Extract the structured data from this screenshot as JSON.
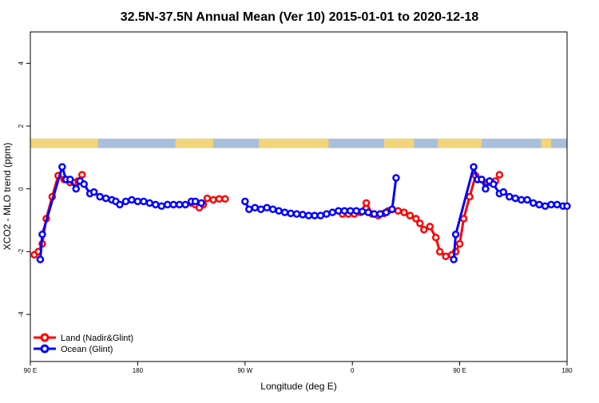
{
  "chart_data": {
    "type": "line",
    "title": "32.5N-37.5N Annual Mean (Ver 10)   2015-01-01 to 2020-12-18",
    "xlabel": "Longitude (deg E)",
    "ylabel": "XCO2 - MLO trend (ppm)",
    "xlim": [
      -90,
      180
    ],
    "ylim": [
      -5.5,
      5
    ],
    "x_ticks": [
      {
        "value": -90,
        "label": "90 E"
      },
      {
        "value": -36,
        "label": "180"
      },
      {
        "value": 18,
        "label": "90 W"
      },
      {
        "value": 72,
        "label": "0"
      },
      {
        "value": 126,
        "label": "90 E"
      },
      {
        "value": 180,
        "label": "180"
      }
    ],
    "y_ticks": [
      {
        "value": -4,
        "label": "-4"
      },
      {
        "value": -2,
        "label": "-2"
      },
      {
        "value": 0,
        "label": "0"
      },
      {
        "value": 2,
        "label": "2"
      },
      {
        "value": 4,
        "label": "4"
      }
    ],
    "land_mask_band": {
      "y_range": [
        1.3,
        1.6
      ],
      "ocean_color": "#a9bfdc",
      "land_color": "#f2d57a",
      "land_segments": [
        [
          -90,
          -56
        ],
        [
          -17,
          2
        ],
        [
          25,
          60
        ],
        [
          88,
          103
        ],
        [
          115,
          137
        ],
        [
          167,
          172
        ]
      ]
    },
    "legend_position": "bottom-left",
    "series": [
      {
        "name": "Land (Nadir&Glint)",
        "color": "#ff0000",
        "points": [
          [
            -88,
            -2.1
          ],
          [
            -86,
            -2.0
          ],
          [
            -84,
            -1.75
          ],
          [
            -82,
            -0.95
          ],
          [
            -79,
            -0.25
          ],
          [
            -76,
            0.42
          ],
          [
            -73,
            0.3
          ],
          [
            -70,
            0.2
          ],
          [
            -68,
            0.2
          ],
          [
            -66,
            0.25
          ],
          [
            -64,
            0.45
          ],
          [
            -9,
            -0.45
          ],
          [
            -7,
            -0.5
          ],
          [
            -5,
            -0.6
          ],
          [
            -3,
            -0.5
          ],
          [
            -1,
            -0.3
          ],
          [
            2,
            -0.35
          ],
          [
            5,
            -0.32
          ],
          [
            8,
            -0.32
          ],
          [
            67,
            -0.8
          ],
          [
            70,
            -0.8
          ],
          [
            73,
            -0.8
          ],
          [
            76,
            -0.75
          ],
          [
            79,
            -0.45
          ],
          [
            82,
            -0.8
          ],
          [
            85,
            -0.85
          ],
          [
            88,
            -0.78
          ],
          [
            90,
            -0.7
          ],
          [
            92,
            -0.65
          ],
          [
            95,
            -0.7
          ],
          [
            98,
            -0.75
          ],
          [
            101,
            -0.85
          ],
          [
            104,
            -0.95
          ],
          [
            106,
            -1.1
          ],
          [
            108,
            -1.3
          ],
          [
            111,
            -1.2
          ],
          [
            114,
            -1.55
          ],
          [
            116,
            -2.0
          ],
          [
            119,
            -2.15
          ],
          [
            122,
            -2.1
          ],
          [
            124,
            -2.0
          ],
          [
            126,
            -1.75
          ],
          [
            128,
            -0.95
          ],
          [
            131,
            -0.25
          ],
          [
            134,
            0.42
          ],
          [
            137,
            0.3
          ],
          [
            140,
            0.2
          ],
          [
            142,
            0.2
          ],
          [
            144,
            0.25
          ],
          [
            146,
            0.45
          ]
        ]
      },
      {
        "name": "Ocean (Glint)",
        "color": "#0000ff",
        "points": [
          [
            -85,
            -2.25
          ],
          [
            -84,
            -1.45
          ],
          [
            -74,
            0.7
          ],
          [
            -72,
            0.3
          ],
          [
            -70,
            0.3
          ],
          [
            -67,
            0.0
          ],
          [
            -65,
            0.25
          ],
          [
            -63,
            0.15
          ],
          [
            -60,
            -0.15
          ],
          [
            -58,
            -0.1
          ],
          [
            -55,
            -0.25
          ],
          [
            -52,
            -0.3
          ],
          [
            -49,
            -0.35
          ],
          [
            -47,
            -0.4
          ],
          [
            -45,
            -0.5
          ],
          [
            -42,
            -0.4
          ],
          [
            -39,
            -0.35
          ],
          [
            -36,
            -0.4
          ],
          [
            -33,
            -0.4
          ],
          [
            -30,
            -0.45
          ],
          [
            -27,
            -0.5
          ],
          [
            -24,
            -0.55
          ],
          [
            -21,
            -0.5
          ],
          [
            -18,
            -0.5
          ],
          [
            -15,
            -0.5
          ],
          [
            -12,
            -0.5
          ],
          [
            -9,
            -0.4
          ],
          [
            -7,
            -0.4
          ],
          [
            -4,
            -0.45
          ],
          [
            18,
            -0.4
          ],
          [
            20,
            -0.65
          ],
          [
            23,
            -0.6
          ],
          [
            26,
            -0.65
          ],
          [
            29,
            -0.6
          ],
          [
            32,
            -0.65
          ],
          [
            35,
            -0.7
          ],
          [
            38,
            -0.75
          ],
          [
            41,
            -0.78
          ],
          [
            44,
            -0.8
          ],
          [
            47,
            -0.82
          ],
          [
            50,
            -0.85
          ],
          [
            53,
            -0.85
          ],
          [
            56,
            -0.85
          ],
          [
            59,
            -0.8
          ],
          [
            62,
            -0.75
          ],
          [
            65,
            -0.7
          ],
          [
            68,
            -0.7
          ],
          [
            71,
            -0.7
          ],
          [
            74,
            -0.7
          ],
          [
            77,
            -0.72
          ],
          [
            80,
            -0.75
          ],
          [
            83,
            -0.8
          ],
          [
            86,
            -0.8
          ],
          [
            89,
            -0.75
          ],
          [
            92,
            -0.65
          ],
          [
            94,
            0.35
          ],
          [
            123,
            -2.25
          ],
          [
            124,
            -1.45
          ],
          [
            133,
            0.7
          ],
          [
            135,
            0.3
          ],
          [
            137,
            0.3
          ],
          [
            139,
            0.0
          ],
          [
            141,
            0.25
          ],
          [
            143,
            0.15
          ],
          [
            146,
            -0.15
          ],
          [
            148,
            -0.1
          ],
          [
            151,
            -0.25
          ],
          [
            154,
            -0.3
          ],
          [
            157,
            -0.35
          ],
          [
            160,
            -0.35
          ],
          [
            163,
            -0.45
          ],
          [
            166,
            -0.5
          ],
          [
            169,
            -0.55
          ],
          [
            172,
            -0.5
          ],
          [
            175,
            -0.5
          ],
          [
            178,
            -0.55
          ],
          [
            180,
            -0.55
          ]
        ]
      }
    ]
  }
}
